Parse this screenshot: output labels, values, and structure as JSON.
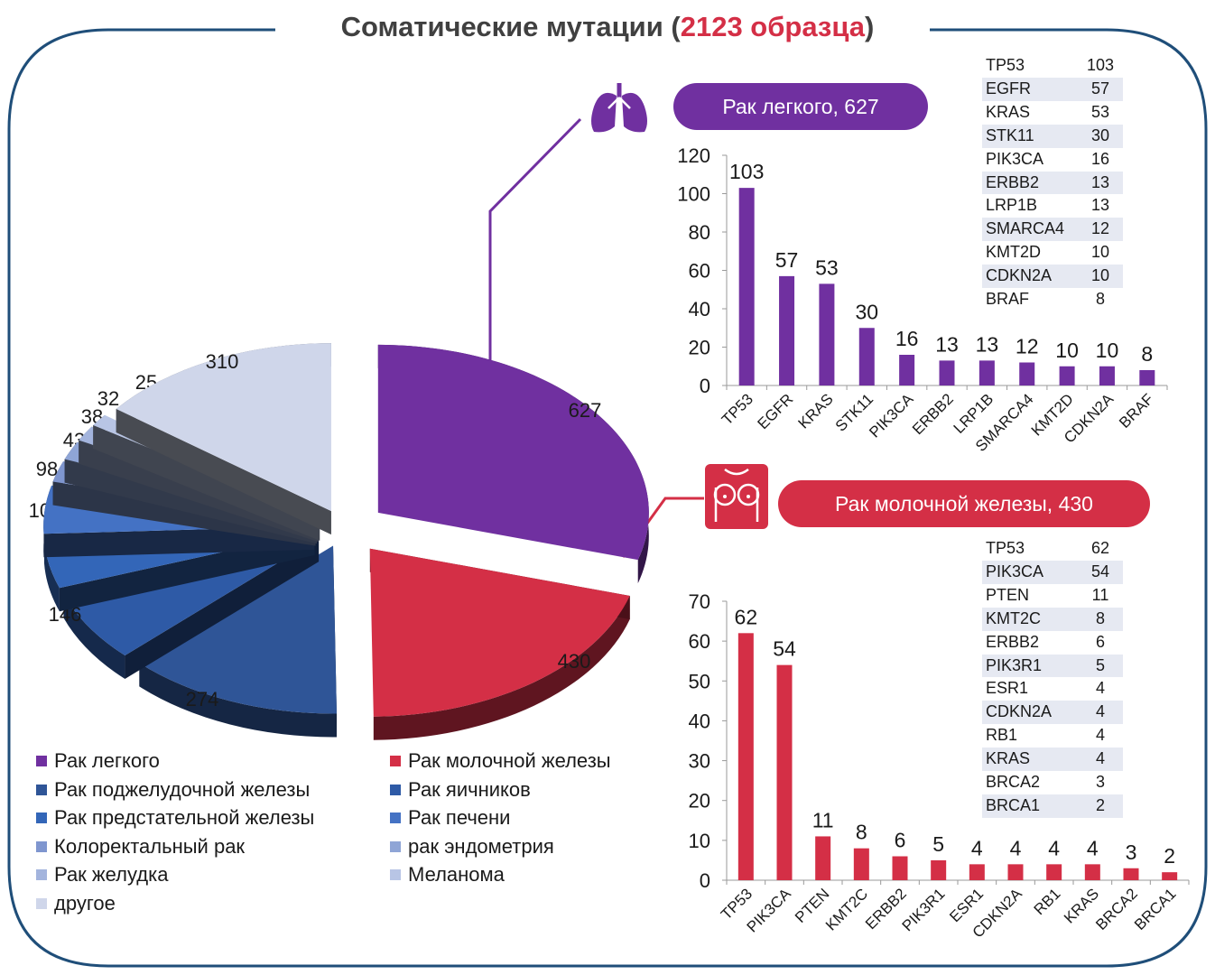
{
  "title": {
    "text": "Соматические мутации (",
    "highlight": "2123 образца",
    "close": ")"
  },
  "colors": {
    "lung": "#7030a0",
    "breast": "#d42f46",
    "frame": "#1f4e79"
  },
  "lung_panel": {
    "pill": "Рак легкого, 627",
    "icon": "lungs-icon",
    "table": [
      {
        "gene": "TP53",
        "value": "103"
      },
      {
        "gene": "EGFR",
        "value": "57"
      },
      {
        "gene": "KRAS",
        "value": "53"
      },
      {
        "gene": "STK11",
        "value": "30"
      },
      {
        "gene": "PIK3CA",
        "value": "16"
      },
      {
        "gene": "ERBB2",
        "value": "13"
      },
      {
        "gene": "LRP1B",
        "value": "13"
      },
      {
        "gene": "SMARCA4",
        "value": "12"
      },
      {
        "gene": "KMT2D",
        "value": "10"
      },
      {
        "gene": "CDKN2A",
        "value": "10"
      },
      {
        "gene": "BRAF",
        "value": "8"
      }
    ]
  },
  "breast_panel": {
    "pill": "Рак молочной железы, 430",
    "icon": "breast-torso-icon",
    "table": [
      {
        "gene": "TP53",
        "value": "62"
      },
      {
        "gene": "PIK3CA",
        "value": "54"
      },
      {
        "gene": "PTEN",
        "value": "11"
      },
      {
        "gene": "KMT2C",
        "value": "8"
      },
      {
        "gene": "ERBB2",
        "value": "6"
      },
      {
        "gene": "PIK3R1",
        "value": "5"
      },
      {
        "gene": "ESR1",
        "value": "4"
      },
      {
        "gene": "CDKN2A",
        "value": "4"
      },
      {
        "gene": "RB1",
        "value": "4"
      },
      {
        "gene": "KRAS",
        "value": "4"
      },
      {
        "gene": "BRCA2",
        "value": "3"
      },
      {
        "gene": "BRCA1",
        "value": "2"
      }
    ]
  },
  "chart_data": [
    {
      "type": "pie",
      "categories": [
        "Рак легкого",
        "Рак молочной железы",
        "Рак поджелудочной железы",
        "Рак яичников",
        "Рак предстательной железы",
        "Рак печени",
        "Колоректальный рак",
        "рак эндометрия",
        "Рак желудка",
        "Меланома",
        "другое"
      ],
      "values": [
        627,
        430,
        274,
        146,
        100,
        98,
        43,
        38,
        32,
        25,
        310
      ],
      "colors": [
        "#7030a0",
        "#d42f46",
        "#2f5597",
        "#2e5aa6",
        "#3366b8",
        "#4472c4",
        "#7f96cf",
        "#8fa5d6",
        "#a3b4dd",
        "#b8c5e5",
        "#cfd6ea"
      ],
      "legend_position": "bottom"
    },
    {
      "type": "bar",
      "categories": [
        "TP53",
        "EGFR",
        "KRAS",
        "STK11",
        "PIK3CA",
        "ERBB2",
        "LRP1B",
        "SMARCA4",
        "KMT2D",
        "CDKN2A",
        "BRAF"
      ],
      "values": [
        103,
        57,
        53,
        30,
        16,
        13,
        13,
        12,
        10,
        10,
        8
      ],
      "ylim": [
        0,
        120
      ],
      "yticks": [
        0,
        20,
        40,
        60,
        80,
        100,
        120
      ],
      "color": "#7030a0",
      "grid": false
    },
    {
      "type": "bar",
      "categories": [
        "TP53",
        "PIK3CA",
        "PTEN",
        "KMT2C",
        "ERBB2",
        "PIK3R1",
        "ESR1",
        "CDKN2A",
        "RB1",
        "KRAS",
        "BRCA2",
        "BRCA1"
      ],
      "values": [
        62,
        54,
        11,
        8,
        6,
        5,
        4,
        4,
        4,
        4,
        3,
        2
      ],
      "ylim": [
        0,
        70
      ],
      "yticks": [
        0,
        10,
        20,
        30,
        40,
        50,
        60,
        70
      ],
      "color": "#d42f46",
      "grid": false
    }
  ]
}
